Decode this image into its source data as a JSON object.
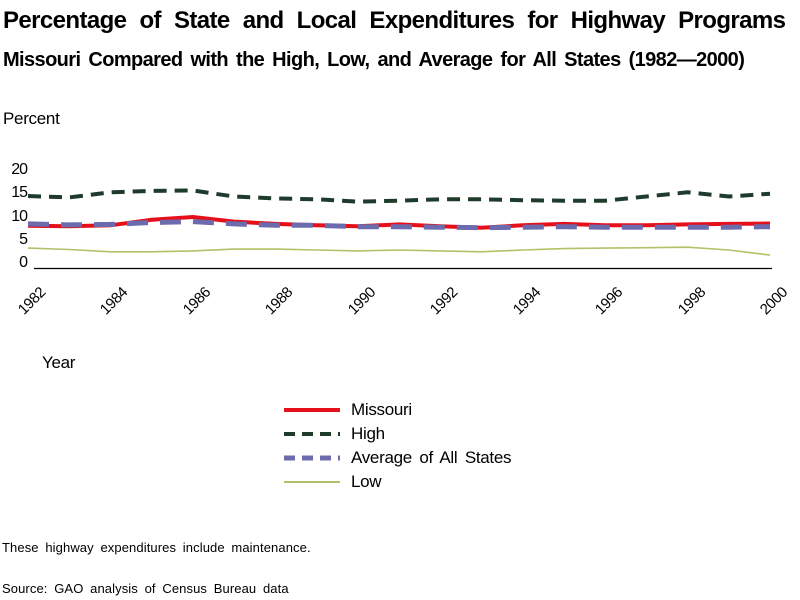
{
  "chart_data": {
    "type": "line",
    "title": "Percentage of State and Local Expenditures for Highway Programs",
    "subtitle": "Missouri Compared with the High, Low, and Average for All States (1982—2000)",
    "xlabel": "Year",
    "ylabel": "Percent",
    "ylim": [
      0,
      20
    ],
    "grid": false,
    "legend_position": "bottom-center",
    "x": [
      1982,
      1983,
      1984,
      1985,
      1986,
      1987,
      1988,
      1989,
      1990,
      1991,
      1992,
      1993,
      1994,
      1995,
      1996,
      1997,
      1998,
      1999,
      2000
    ],
    "x_ticks": [
      1982,
      1984,
      1986,
      1988,
      1990,
      1992,
      1994,
      1996,
      1998,
      2000
    ],
    "y_ticks": [
      20,
      15,
      10,
      5,
      0
    ],
    "series": [
      {
        "name": "Missouri",
        "color": "#e6101a",
        "style": "solid",
        "width": 4,
        "values": [
          8.0,
          7.9,
          8.1,
          9.3,
          9.9,
          8.9,
          8.4,
          8.1,
          7.9,
          8.3,
          7.9,
          7.6,
          8.1,
          8.4,
          8.1,
          8.1,
          8.3,
          8.4,
          8.5
        ]
      },
      {
        "name": "High",
        "color": "#1e3b2b",
        "style": "dashed",
        "dash": "13 8",
        "width": 4,
        "values": [
          14.4,
          14.1,
          15.2,
          15.5,
          15.6,
          14.3,
          13.9,
          13.7,
          13.2,
          13.4,
          13.7,
          13.7,
          13.5,
          13.4,
          13.4,
          14.3,
          15.2,
          14.3,
          14.9
        ]
      },
      {
        "name": "Average of All States",
        "color": "#6b6bae",
        "style": "dashed",
        "dash": "21 12",
        "width": 5,
        "values": [
          8.4,
          8.2,
          8.3,
          8.7,
          8.9,
          8.4,
          8.1,
          8.1,
          7.8,
          7.8,
          7.7,
          7.6,
          7.7,
          7.8,
          7.7,
          7.7,
          7.7,
          7.7,
          7.8
        ]
      },
      {
        "name": "Low",
        "color": "#b3c168",
        "style": "solid",
        "width": 1.6,
        "values": [
          3.2,
          2.9,
          2.4,
          2.4,
          2.6,
          3.0,
          3.0,
          2.8,
          2.6,
          2.8,
          2.6,
          2.4,
          2.8,
          3.1,
          3.2,
          3.3,
          3.4,
          2.8,
          1.7
        ]
      }
    ],
    "axis_color": "#000000"
  },
  "footnotes": {
    "note": "These highway expenditures include maintenance.",
    "source": "Source: GAO analysis of Census Bureau data"
  }
}
